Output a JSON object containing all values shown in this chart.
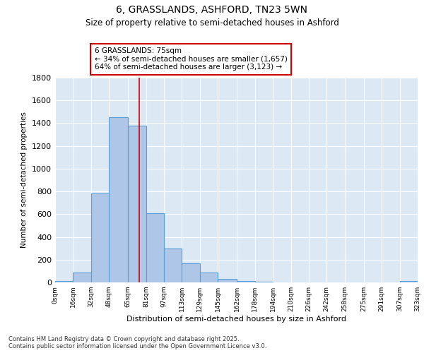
{
  "title": "6, GRASSLANDS, ASHFORD, TN23 5WN",
  "subtitle": "Size of property relative to semi-detached houses in Ashford",
  "xlabel": "Distribution of semi-detached houses by size in Ashford",
  "ylabel": "Number of semi-detached properties",
  "bin_edges": [
    0,
    16,
    32,
    48,
    65,
    81,
    97,
    113,
    129,
    145,
    162,
    178,
    194,
    210,
    226,
    242,
    258,
    275,
    291,
    307,
    323
  ],
  "bar_heights": [
    10,
    90,
    780,
    1450,
    1380,
    610,
    300,
    170,
    85,
    30,
    15,
    5,
    0,
    0,
    0,
    0,
    0,
    0,
    0,
    15
  ],
  "bar_color": "#aec6e8",
  "bar_edge_color": "#5a9fd4",
  "property_size": 75,
  "vline_color": "#cc0000",
  "annotation_text": "6 GRASSLANDS: 75sqm\n← 34% of semi-detached houses are smaller (1,657)\n64% of semi-detached houses are larger (3,123) →",
  "annotation_box_color": "#ffffff",
  "annotation_box_edge_color": "#cc0000",
  "ylim": [
    0,
    1800
  ],
  "background_color": "#dce9f5",
  "footer_text": "Contains HM Land Registry data © Crown copyright and database right 2025.\nContains public sector information licensed under the Open Government Licence v3.0.",
  "tick_labels": [
    "0sqm",
    "16sqm",
    "32sqm",
    "48sqm",
    "65sqm",
    "81sqm",
    "97sqm",
    "113sqm",
    "129sqm",
    "145sqm",
    "162sqm",
    "178sqm",
    "194sqm",
    "210sqm",
    "226sqm",
    "242sqm",
    "258sqm",
    "275sqm",
    "291sqm",
    "307sqm",
    "323sqm"
  ]
}
